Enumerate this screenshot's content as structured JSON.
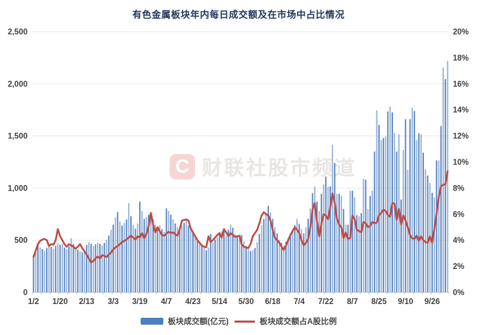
{
  "title": "有色金属板块年内每日成交额及在市场中占比情况",
  "watermark": {
    "logo_letter": "C",
    "text": "财联社股市频道",
    "logo_bg": "#f6d6d4",
    "text_color": "#e9e5e2"
  },
  "colors": {
    "bar": "#4d7ebd",
    "bar_alt": "#92afd7",
    "line": "#bd4b47",
    "grid": "#e7e7e7",
    "axis": "#c2c2c2",
    "tick_text": "#3f3f3f",
    "title_text": "#21365c"
  },
  "legend": {
    "items": [
      {
        "label": "板块成交额(亿元)",
        "type": "bar",
        "color": "#4d7ebd"
      },
      {
        "label": "板块成交额占A股比例",
        "type": "line",
        "color": "#bd4b47"
      }
    ]
  },
  "chart_data": {
    "type": "bar+line",
    "title": "有色金属板块年内每日成交额及在市场中占比情况",
    "grid": true,
    "legend_position": "bottom",
    "x_tick_labels": [
      "1/2",
      "1/20",
      "2/13",
      "3/3",
      "3/19",
      "4/7",
      "4/23",
      "5/14",
      "5/30",
      "6/18",
      "7/4",
      "7/22",
      "8/7",
      "8/25",
      "9/10",
      "9/26"
    ],
    "x_tick_indices": [
      0,
      12,
      24,
      36,
      48,
      60,
      72,
      84,
      96,
      108,
      120,
      132,
      144,
      156,
      168,
      180
    ],
    "left_axis": {
      "label": "板块成交额(亿元)",
      "min": 0,
      "max": 2500,
      "step": 500,
      "tick_labels": [
        "0",
        "500",
        "1,000",
        "1,500",
        "2,000",
        "2,500"
      ]
    },
    "right_axis": {
      "label": "板块成交额占A股比例",
      "min": 0,
      "max": 20,
      "step": 2,
      "tick_labels": [
        "0%",
        "2%",
        "4%",
        "6%",
        "8%",
        "10%",
        "12%",
        "14%",
        "16%",
        "18%",
        "20%"
      ]
    },
    "series": [
      {
        "name": "板块成交额(亿元)",
        "type": "bar",
        "axis": "left",
        "unit": "亿元",
        "values": [
          360,
          420,
          450,
          430,
          415,
          400,
          425,
          445,
          435,
          420,
          445,
          470,
          455,
          465,
          430,
          415,
          440,
          520,
          465,
          430,
          410,
          395,
          385,
          400,
          455,
          480,
          465,
          445,
          460,
          475,
          465,
          450,
          475,
          505,
          545,
          600,
          650,
          720,
          770,
          680,
          640,
          665,
          700,
          855,
          730,
          645,
          610,
          660,
          870,
          780,
          705,
          725,
          745,
          765,
          700,
          650,
          625,
          645,
          605,
          580,
          805,
          780,
          745,
          700,
          660,
          625,
          600,
          640,
          665,
          690,
          640,
          610,
          575,
          545,
          505,
          470,
          445,
          425,
          405,
          430,
          560,
          480,
          505,
          525,
          560,
          585,
          610,
          540,
          600,
          650,
          620,
          560,
          545,
          525,
          550,
          490,
          445,
          415,
          395,
          405,
          425,
          480,
          560,
          645,
          705,
          755,
          830,
          765,
          705,
          625,
          565,
          505,
          475,
          450,
          485,
          525,
          565,
          605,
          645,
          705,
          655,
          605,
          565,
          625,
          705,
          805,
          950,
          1015,
          870,
          780,
          945,
          1035,
          1110,
          1010,
          1015,
          1415,
          1240,
          945,
          945,
          925,
          800,
          650,
          650,
          975,
          975,
          910,
          740,
          730,
          760,
          1090,
          1080,
          800,
          925,
          975,
          1350,
          1745,
          1605,
          1460,
          1480,
          1495,
          1735,
          1780,
          1725,
          1530,
          1350,
          1515,
          890,
          1365,
          1660,
          1175,
          1660,
          1770,
          1740,
          1460,
          1525,
          1515,
          1340,
          1180,
          1120,
          1050,
          955,
          910,
          1265,
          1265,
          1595,
          2155,
          2045,
          2220
        ]
      },
      {
        "name": "板块成交额占A股比例",
        "type": "line",
        "axis": "right",
        "unit": "%",
        "values": [
          2.7,
          3.2,
          3.7,
          3.95,
          4.05,
          4.1,
          4.0,
          3.55,
          3.7,
          3.65,
          4.0,
          4.85,
          4.3,
          4.0,
          3.7,
          3.5,
          3.7,
          3.6,
          3.5,
          3.35,
          3.5,
          3.7,
          3.4,
          3.15,
          2.9,
          2.6,
          2.3,
          2.4,
          2.6,
          2.75,
          2.6,
          2.85,
          2.8,
          2.7,
          2.9,
          3.05,
          3.3,
          3.45,
          3.55,
          3.7,
          3.85,
          3.95,
          4.05,
          4.2,
          4.35,
          4.2,
          4.05,
          4.3,
          4.2,
          4.55,
          4.15,
          4.5,
          5.1,
          6.1,
          5.2,
          4.6,
          5.0,
          4.7,
          4.4,
          4.35,
          4.5,
          4.65,
          4.55,
          4.6,
          4.45,
          4.35,
          4.8,
          5.5,
          5.55,
          5.6,
          5.5,
          4.9,
          4.6,
          4.3,
          4.0,
          3.8,
          3.6,
          3.5,
          3.45,
          4.3,
          3.85,
          4.0,
          4.2,
          4.4,
          4.55,
          4.2,
          4.85,
          4.6,
          4.3,
          4.55,
          4.4,
          4.25,
          4.3,
          4.35,
          3.7,
          3.5,
          3.45,
          3.4,
          3.7,
          4.3,
          4.55,
          4.8,
          5.3,
          5.9,
          6.15,
          6.0,
          5.9,
          5.5,
          4.8,
          4.2,
          4.0,
          3.8,
          3.5,
          3.25,
          3.6,
          4.0,
          4.4,
          4.7,
          5.0,
          4.8,
          4.55,
          4.0,
          3.6,
          3.8,
          4.1,
          5.0,
          6.35,
          6.85,
          5.5,
          4.3,
          5.3,
          6.0,
          5.9,
          5.6,
          6.5,
          7.6,
          6.9,
          5.65,
          5.2,
          5.0,
          4.15,
          4.6,
          4.1,
          4.15,
          5.9,
          5.6,
          4.8,
          4.7,
          4.6,
          5.4,
          5.3,
          5.0,
          5.1,
          5.4,
          5.3,
          5.35,
          5.9,
          6.1,
          6.35,
          6.25,
          5.95,
          5.8,
          6.85,
          6.8,
          5.55,
          6.4,
          5.2,
          5.9,
          5.5,
          5.0,
          4.4,
          4.15,
          4.1,
          4.35,
          3.95,
          4.3,
          4.0,
          3.85,
          3.8,
          4.3,
          3.8,
          4.85,
          6.05,
          7.3,
          8.15,
          8.25,
          8.3,
          9.3
        ]
      }
    ]
  }
}
